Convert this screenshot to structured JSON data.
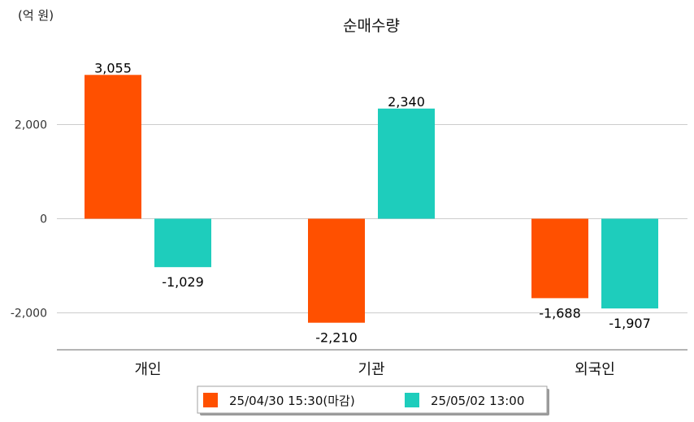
{
  "chart_data": {
    "type": "bar",
    "title": "순매수량",
    "unit_label": "(억 원)",
    "categories": [
      "개인",
      "기관",
      "외국인"
    ],
    "series": [
      {
        "name": "25/04/30 15:30(마감)",
        "values": [
          3055,
          -2210,
          -1688
        ],
        "labels": [
          "3,055",
          "-2,210",
          "-1,688"
        ],
        "color": "#ff5000"
      },
      {
        "name": "25/05/02 13:00",
        "values": [
          -1029,
          2340,
          -1907
        ],
        "labels": [
          "-1,029",
          "2,340",
          "-1,907"
        ],
        "color": "#1ecdbc"
      }
    ],
    "yticks": [
      2000,
      0,
      -2000
    ],
    "ytick_labels": [
      "2,000",
      "0",
      "-2,000"
    ],
    "ylim": [
      -2800,
      3800
    ],
    "grid": true,
    "legend_position": "bottom-center"
  }
}
